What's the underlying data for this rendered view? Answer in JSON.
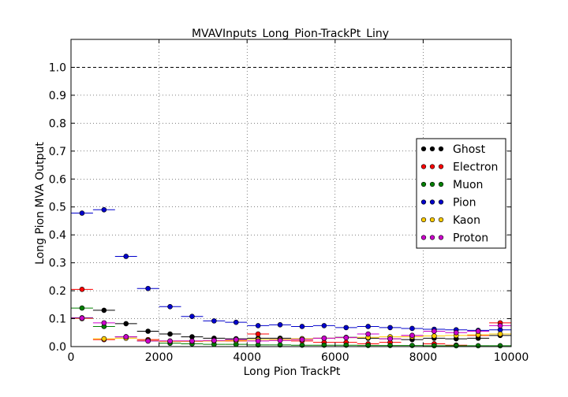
{
  "chart_data": {
    "type": "scatter",
    "title": "MVAVInputs_Long_Pion-TrackPt_Liny",
    "xlabel": "Long Pion TrackPt",
    "ylabel": "Long Pion MVA Output",
    "xlim": [
      0,
      10000
    ],
    "ylim": [
      0,
      1.1
    ],
    "xticks": [
      "0",
      "2000",
      "4000",
      "6000",
      "8000",
      "10000"
    ],
    "xtick_values": [
      0,
      2000,
      4000,
      6000,
      8000,
      10000
    ],
    "yticks": [
      "0.0",
      "0.1",
      "0.2",
      "0.3",
      "0.4",
      "0.5",
      "0.6",
      "0.7",
      "0.8",
      "0.9",
      "1.0"
    ],
    "ytick_values": [
      0.0,
      0.1,
      0.2,
      0.3,
      0.4,
      0.5,
      0.6,
      0.7,
      0.8,
      0.9,
      1.0
    ],
    "grid": true,
    "reference_line_y": 1.0,
    "legend_position": "right",
    "x_bin_width": 500,
    "x": [
      250,
      750,
      1250,
      1750,
      2250,
      2750,
      3250,
      3750,
      4250,
      4750,
      5250,
      5750,
      6250,
      6750,
      7250,
      7750,
      8250,
      8750,
      9250,
      9750
    ],
    "series": [
      {
        "name": "Ghost",
        "color": "#000000",
        "values": [
          0.103,
          0.13,
          0.082,
          0.055,
          0.045,
          0.035,
          0.03,
          0.028,
          0.03,
          0.03,
          0.028,
          0.03,
          0.033,
          0.03,
          0.028,
          0.025,
          0.03,
          0.028,
          0.03,
          0.04
        ]
      },
      {
        "name": "Electron",
        "color": "#ff0000",
        "values": [
          0.205,
          0.025,
          0.035,
          0.025,
          0.02,
          0.02,
          0.02,
          0.02,
          0.045,
          0.025,
          0.02,
          0.015,
          0.015,
          0.01,
          0.015,
          0.04,
          0.01,
          0.005,
          0.04,
          0.085
        ]
      },
      {
        "name": "Muon",
        "color": "#008000",
        "values": [
          0.138,
          0.072,
          0.035,
          0.02,
          0.012,
          0.01,
          0.008,
          0.008,
          0.006,
          0.006,
          0.005,
          0.005,
          0.005,
          0.004,
          0.004,
          0.004,
          0.003,
          0.003,
          0.003,
          0.003
        ]
      },
      {
        "name": "Pion",
        "color": "#0000cc",
        "values": [
          0.478,
          0.49,
          0.323,
          0.208,
          0.143,
          0.108,
          0.092,
          0.087,
          0.075,
          0.078,
          0.072,
          0.075,
          0.068,
          0.072,
          0.068,
          0.065,
          0.062,
          0.06,
          0.058,
          0.06
        ]
      },
      {
        "name": "Kaon",
        "color": "#ffcc00",
        "values": [
          0.1,
          0.028,
          0.03,
          0.022,
          0.018,
          0.018,
          0.02,
          0.022,
          0.025,
          0.025,
          0.028,
          0.03,
          0.032,
          0.033,
          0.035,
          0.035,
          0.038,
          0.04,
          0.042,
          0.045
        ]
      },
      {
        "name": "Proton",
        "color": "#cc00cc",
        "values": [
          0.102,
          0.085,
          0.035,
          0.02,
          0.02,
          0.02,
          0.022,
          0.025,
          0.02,
          0.022,
          0.025,
          0.03,
          0.032,
          0.045,
          0.028,
          0.04,
          0.055,
          0.05,
          0.055,
          0.075
        ]
      }
    ]
  }
}
